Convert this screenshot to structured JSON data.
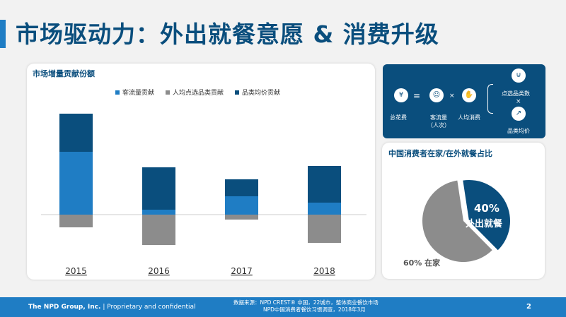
{
  "title": "市场驱动力：外出就餐意愿 & 消费升级",
  "chart_card": {
    "title": "市场增量贡献份额"
  },
  "chart_data": {
    "type": "bar",
    "stacked": true,
    "title": "市场增量贡献份额",
    "categories": [
      "2015",
      "2016",
      "2017",
      "2018"
    ],
    "series": [
      {
        "name": "客流量贡献",
        "color": "#1f7dc4",
        "values": [
          89,
          7,
          26,
          17
        ]
      },
      {
        "name": "人均点选品类贡献",
        "color": "#8c8c8c",
        "values": [
          -18,
          -43,
          -7,
          -40
        ]
      },
      {
        "name": "品类均价贡献",
        "color": "#0a4e7d",
        "values": [
          54,
          60,
          24,
          52
        ]
      }
    ],
    "legend": "top"
  },
  "formula": {
    "total": "总花费",
    "eq": "=",
    "traffic": "客流量",
    "traffic_sub": "（人次）",
    "times": "×",
    "per_capita": "人均消费",
    "items": "点选品类数",
    "price": "品类均价"
  },
  "pie": {
    "title": "中国消费者在家/在外就餐占比",
    "slices": [
      {
        "label": "在家",
        "value": 60,
        "text": "60% 在家",
        "color": "#8c8c8c"
      },
      {
        "label": "外出就餐",
        "value": 40,
        "pct": "40%",
        "text": "外出就餐",
        "color": "#0a4e7d"
      }
    ]
  },
  "footer": {
    "company": "The NPD Group, Inc.",
    "sep": "|",
    "conf": "Proprietary and confidential",
    "source1": "数据来源：NPD CREST® 中国，22城市，整体商业餐饮市场",
    "source2": "NPD中国消费者餐饮习惯调查，2018年3月",
    "page": "2"
  }
}
